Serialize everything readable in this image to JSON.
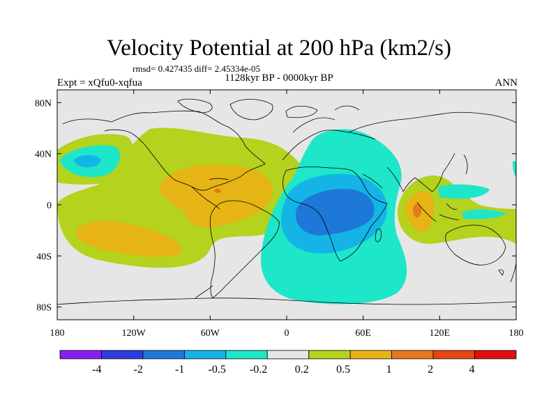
{
  "header": {
    "title": "Velocity Potential at 200 hPa (km2/s)",
    "stats": "rmsd= 0.427435 diff= 2.45334e-05",
    "left_label": "Expt = xQfu0-xqfua",
    "center_label": "1128kyr BP - 0000kyr BP",
    "right_label": "ANN"
  },
  "axes": {
    "x_ticks": [
      {
        "value": -180,
        "label": "180"
      },
      {
        "value": -120,
        "label": "120W"
      },
      {
        "value": -60,
        "label": "60W"
      },
      {
        "value": 0,
        "label": "0"
      },
      {
        "value": 60,
        "label": "60E"
      },
      {
        "value": 120,
        "label": "120E"
      },
      {
        "value": 180,
        "label": "180"
      }
    ],
    "y_ticks": [
      {
        "value": 80,
        "label": "80N"
      },
      {
        "value": 40,
        "label": "40N"
      },
      {
        "value": 0,
        "label": "0"
      },
      {
        "value": -40,
        "label": "40S"
      },
      {
        "value": -80,
        "label": "80S"
      }
    ],
    "lon_range": [
      -180,
      180
    ],
    "lat_range": [
      -90,
      90
    ]
  },
  "colorbar": {
    "colors": [
      "#8a1ef0",
      "#2e3ce0",
      "#1e78d8",
      "#14b4e6",
      "#1ee6c8",
      "#e6e6e6",
      "#b4d21e",
      "#e6b414",
      "#e6781e",
      "#e6460f",
      "#e00f0f"
    ],
    "labels": [
      "-4",
      "-2",
      "-1",
      "-0.5",
      "-0.2",
      "0.2",
      "0.5",
      "1",
      "2",
      "4"
    ]
  },
  "map": {
    "background_color": "#e6e6e6",
    "fields": [
      {
        "level": "0.2 to 0.5",
        "color": "#b4d21e"
      },
      {
        "level": "0.5 to 1",
        "color": "#e6b414"
      },
      {
        "level": "1 to 2",
        "color": "#e6781e"
      },
      {
        "level": "-0.5 to -0.2",
        "color": "#1ee6c8"
      },
      {
        "level": "-1 to -0.5",
        "color": "#14b4e6"
      },
      {
        "level": "-2 to -1",
        "color": "#1e78d8"
      }
    ]
  }
}
